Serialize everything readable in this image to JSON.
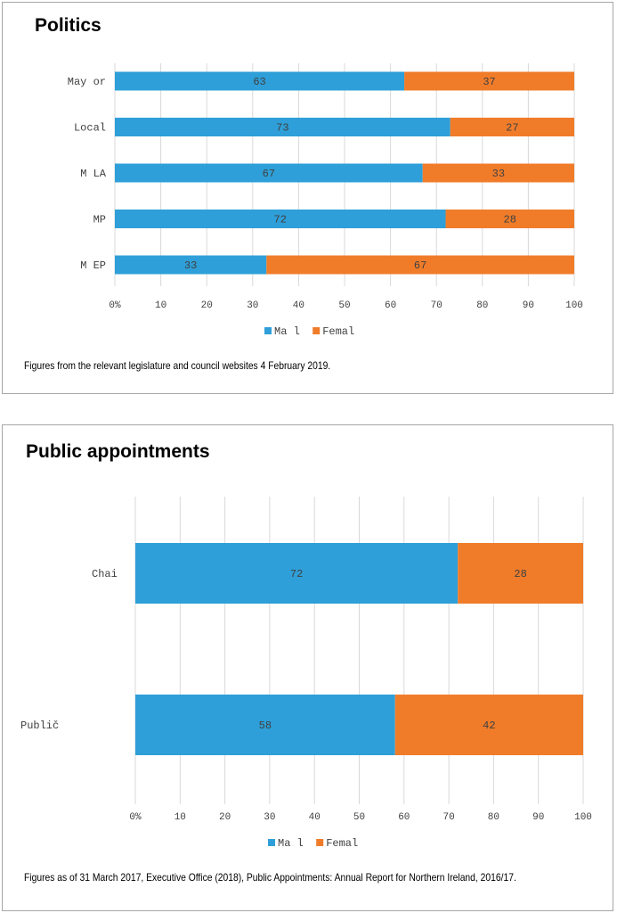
{
  "charts": [
    {
      "title": "Politics",
      "note": "Figures from the relevant legislature and council websites 4 February 2019.",
      "chart_data": {
        "type": "bar",
        "orientation": "horizontal",
        "stacked": true,
        "categories": [
          "May or",
          "Local",
          "M LA",
          "MP",
          "M EP"
        ],
        "series": [
          {
            "name": "Ma l",
            "color": "#2e9fd8",
            "values": [
              63,
              73,
              67,
              72,
              33
            ]
          },
          {
            "name": "Femal",
            "color": "#f07c2a",
            "values": [
              37,
              27,
              33,
              28,
              67
            ]
          }
        ],
        "xlim": [
          0,
          100
        ],
        "ticks": [
          "0%",
          "10",
          "20",
          "30",
          "40",
          "50",
          "60",
          "70",
          "80",
          "90",
          "100"
        ],
        "grid": true,
        "legend": "bottom"
      }
    },
    {
      "title": "Public appointments",
      "note": "Figures as of 31 March 2017, Executive Office (2018), Public Appointments: Annual Report for Northern Ireland, 2016/17.",
      "chart_data": {
        "type": "bar",
        "orientation": "horizontal",
        "stacked": true,
        "categories": [
          "Chai",
          "Publič"
        ],
        "series": [
          {
            "name": "Ma l",
            "color": "#2e9fd8",
            "values": [
              72,
              58
            ]
          },
          {
            "name": "Femal",
            "color": "#f07c2a",
            "values": [
              28,
              42
            ]
          }
        ],
        "xlim": [
          0,
          100
        ],
        "ticks": [
          "0%",
          "10",
          "20",
          "30",
          "40",
          "50",
          "60",
          "70",
          "80",
          "90",
          "100"
        ],
        "grid": true,
        "legend": "bottom"
      }
    }
  ]
}
